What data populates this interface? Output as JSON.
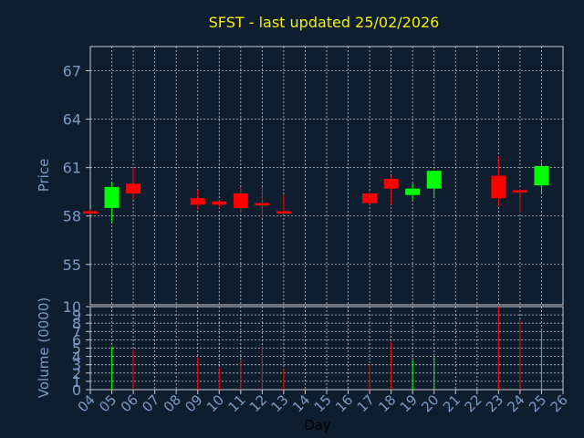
{
  "chart_data": {
    "type": "candlestick",
    "title": "SFST - last updated 25/02/2026",
    "xlabel": "Day",
    "price_ylabel": "Price",
    "volume_ylabel": "Volume (0000)",
    "x_ticks": [
      "04",
      "05",
      "06",
      "07",
      "08",
      "09",
      "10",
      "11",
      "12",
      "13",
      "14",
      "15",
      "16",
      "17",
      "18",
      "19",
      "20",
      "21",
      "22",
      "23",
      "24",
      "25",
      "26"
    ],
    "price_ticks": [
      55,
      58,
      61,
      64,
      67
    ],
    "price_ylim": [
      52.5,
      68.5
    ],
    "volume_ticks": [
      0,
      1,
      2,
      3,
      4,
      5,
      6,
      7,
      8,
      9,
      10
    ],
    "volume_ylim": [
      0,
      10
    ],
    "grid": true,
    "colors": {
      "up": "#00ff00",
      "down": "#ff0000",
      "background": "#0f1e2f",
      "title": "#f2f200",
      "axis_text": "#7b9ac4",
      "grid": "#c8c8c8"
    },
    "candles": [
      {
        "day": 4,
        "open": 58.3,
        "close": 58.2,
        "high": 58.4,
        "low": 58.1,
        "volume": 0
      },
      {
        "day": 5,
        "open": 58.5,
        "close": 59.8,
        "high": 60.1,
        "low": 57.6,
        "volume": 5.2
      },
      {
        "day": 6,
        "open": 60.0,
        "close": 59.4,
        "high": 61.0,
        "low": 59.0,
        "volume": 4.8
      },
      {
        "day": 9,
        "open": 59.1,
        "close": 58.7,
        "high": 59.6,
        "low": 58.4,
        "volume": 3.9
      },
      {
        "day": 10,
        "open": 58.9,
        "close": 58.7,
        "high": 59.0,
        "low": 58.5,
        "volume": 2.6
      },
      {
        "day": 11,
        "open": 59.4,
        "close": 58.5,
        "high": 59.8,
        "low": 58.2,
        "volume": 3.6
      },
      {
        "day": 12,
        "open": 58.8,
        "close": 58.7,
        "high": 59.8,
        "low": 57.9,
        "volume": 5.2
      },
      {
        "day": 13,
        "open": 58.3,
        "close": 58.2,
        "high": 59.3,
        "low": 58.2,
        "volume": 2.5
      },
      {
        "day": 17,
        "open": 59.4,
        "close": 58.8,
        "high": 59.5,
        "low": 58.7,
        "volume": 3.1
      },
      {
        "day": 18,
        "open": 60.3,
        "close": 59.7,
        "high": 60.5,
        "low": 58.7,
        "volume": 5.7
      },
      {
        "day": 19,
        "open": 59.3,
        "close": 59.7,
        "high": 60.0,
        "low": 59.0,
        "volume": 3.6
      },
      {
        "day": 20,
        "open": 59.7,
        "close": 60.8,
        "high": 60.8,
        "low": 59.1,
        "volume": 4.0
      },
      {
        "day": 23,
        "open": 60.5,
        "close": 59.1,
        "high": 61.7,
        "low": 58.6,
        "volume": 10.0
      },
      {
        "day": 24,
        "open": 59.6,
        "close": 59.5,
        "high": 59.7,
        "low": 58.2,
        "volume": 8.4
      },
      {
        "day": 25,
        "open": 59.9,
        "close": 61.1,
        "high": 61.3,
        "low": 59.4,
        "volume": 7.1
      }
    ]
  }
}
